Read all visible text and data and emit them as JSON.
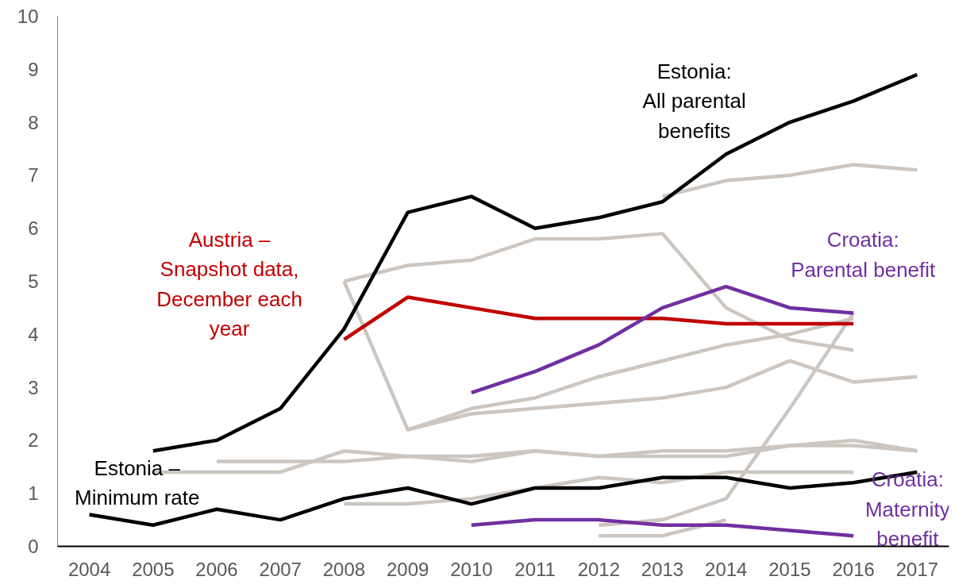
{
  "chart_data": {
    "type": "line",
    "xlim": [
      2003.5,
      2017.5
    ],
    "xticks": [
      2004,
      2005,
      2006,
      2007,
      2008,
      2009,
      2010,
      2011,
      2012,
      2013,
      2014,
      2015,
      2016,
      2017
    ],
    "ylim": [
      0,
      10
    ],
    "yticks": [
      0,
      1,
      2,
      3,
      4,
      5,
      6,
      7,
      8,
      9,
      10
    ],
    "grid": false,
    "marker": "none",
    "line_style": "solid",
    "series": [
      {
        "color": "#cdc6c0",
        "x": [
          2008,
          2009,
          2010,
          2011,
          2012,
          2013,
          2014,
          2015,
          2016
        ],
        "values": [
          5.0,
          5.3,
          5.4,
          5.8,
          5.8,
          5.9,
          4.5,
          3.9,
          3.7
        ]
      },
      {
        "color": "#cdc6c0",
        "x": [
          2008,
          2009,
          2010,
          2011,
          2012,
          2013,
          2014,
          2015,
          2016
        ],
        "values": [
          5.0,
          2.2,
          2.6,
          2.8,
          3.2,
          3.5,
          3.8,
          4.0,
          4.3
        ]
      },
      {
        "color": "#cdc6c0",
        "x": [
          2009,
          2010,
          2011,
          2012,
          2013,
          2014,
          2015,
          2016,
          2017
        ],
        "values": [
          2.2,
          2.5,
          2.6,
          2.7,
          2.8,
          3.0,
          3.5,
          3.1,
          3.2
        ]
      },
      {
        "color": "#cdc6c0",
        "x": [
          2013,
          2014,
          2015,
          2016,
          2017
        ],
        "values": [
          6.6,
          6.9,
          7.0,
          7.2,
          7.1
        ]
      },
      {
        "color": "#cdc6c0",
        "x": [
          2005,
          2006,
          2007,
          2008,
          2009,
          2010,
          2011,
          2012,
          2013,
          2014,
          2015,
          2016,
          2017
        ],
        "values": [
          1.4,
          1.4,
          1.4,
          1.8,
          1.7,
          1.7,
          1.8,
          1.7,
          1.7,
          1.7,
          1.9,
          1.9,
          1.8
        ]
      },
      {
        "color": "#cdc6c0",
        "x": [
          2006,
          2007,
          2008,
          2009,
          2010,
          2011,
          2012,
          2013,
          2014,
          2015,
          2016,
          2017
        ],
        "values": [
          1.6,
          1.6,
          1.6,
          1.7,
          1.6,
          1.8,
          1.7,
          1.8,
          1.8,
          1.9,
          2.0,
          1.8
        ]
      },
      {
        "color": "#cdc6c0",
        "x": [
          2008,
          2009,
          2010,
          2011,
          2012,
          2013,
          2014,
          2015,
          2016
        ],
        "values": [
          0.8,
          0.8,
          0.9,
          1.1,
          1.3,
          1.2,
          1.4,
          1.4,
          1.4
        ]
      },
      {
        "color": "#cdc6c0",
        "x": [
          2012,
          2013,
          2014,
          2015,
          2016
        ],
        "values": [
          0.4,
          0.5,
          0.9,
          2.6,
          4.4
        ]
      },
      {
        "color": "#cdc6c0",
        "x": [
          2012,
          2013,
          2014
        ],
        "values": [
          0.2,
          0.2,
          0.5
        ]
      },
      {
        "name": "Estonia:\nAll parental\nbenefits",
        "color": "#000000",
        "x": [
          2005,
          2006,
          2007,
          2008,
          2009,
          2010,
          2011,
          2012,
          2013,
          2014,
          2015,
          2016,
          2017
        ],
        "values": [
          1.8,
          2.0,
          2.6,
          4.1,
          6.3,
          6.6,
          6.0,
          6.2,
          6.5,
          7.4,
          8.0,
          8.4,
          8.9
        ]
      },
      {
        "name": "Estonia –\nMinimum rate",
        "color": "#000000",
        "x": [
          2004,
          2005,
          2006,
          2007,
          2008,
          2009,
          2010,
          2011,
          2012,
          2013,
          2014,
          2015,
          2016,
          2017
        ],
        "values": [
          0.6,
          0.4,
          0.7,
          0.5,
          0.9,
          1.1,
          0.8,
          1.1,
          1.1,
          1.3,
          1.3,
          1.1,
          1.2,
          1.4
        ]
      },
      {
        "name": "Austria –\nSnapshot data,\nDecember each\nyear",
        "color": "#c00000",
        "x": [
          2008,
          2009,
          2010,
          2011,
          2012,
          2013,
          2014,
          2015,
          2016
        ],
        "values": [
          3.9,
          4.7,
          4.5,
          4.3,
          4.3,
          4.3,
          4.2,
          4.2,
          4.2
        ]
      },
      {
        "name": "Croatia:\nParental benefit",
        "color": "#7030a0",
        "x": [
          2010,
          2011,
          2012,
          2013,
          2014,
          2015,
          2016
        ],
        "values": [
          2.9,
          3.3,
          3.8,
          4.5,
          4.9,
          4.5,
          4.4
        ]
      },
      {
        "name": "Croatia:\nMaternity\nbenefit",
        "color": "#7030a0",
        "x": [
          2010,
          2011,
          2012,
          2013,
          2014,
          2015,
          2016
        ],
        "values": [
          0.4,
          0.5,
          0.5,
          0.4,
          0.4,
          0.3,
          0.2
        ]
      }
    ]
  }
}
